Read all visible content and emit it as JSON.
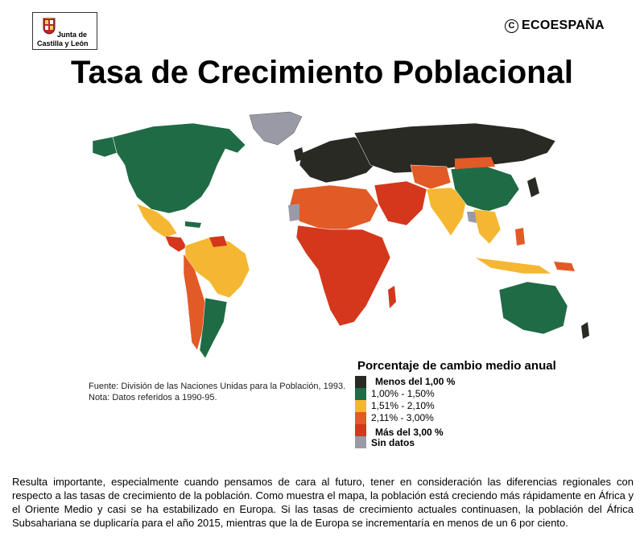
{
  "logo": {
    "line1": "Junta de",
    "line2": "Castilla y León"
  },
  "brand": {
    "symbol": "C",
    "name": "ECOESPAÑA"
  },
  "title": "Tasa de Crecimiento Poblacional",
  "source": {
    "line1": "Fuente: División de las Naciones Unidas para la Población, 1993.",
    "line2": "Nota: Datos referidos a 1990-95."
  },
  "legend": {
    "title": "Porcentaje de cambio medio anual",
    "items": [
      {
        "label": "Menos del 1,00 %",
        "color": "#2a2a24"
      },
      {
        "label": "1,00% - 1,50%",
        "color": "#1f6b45"
      },
      {
        "label": "1,51% - 2,10%",
        "color": "#f5b731"
      },
      {
        "label": "2,11% - 3,00%",
        "color": "#e25a25"
      },
      {
        "label": "Más del 3,00 %",
        "color": "#d4371c"
      },
      {
        "label": "Sin datos",
        "color": "#9a9aa6"
      }
    ]
  },
  "caption": "Resulta importante, especialmente cuando pensamos de cara al futuro, tener en consideración las diferencias regionales con respecto a las tasas de crecimiento de la población. Como muestra el mapa, la población está creciendo más rápidamente en África y el Oriente Medio y casi se ha estabilizado en Europa. Si las tasas de crecimiento actuales continuasen, la población del África Subsahariana se duplicaría para el año 2015, mientras que la de Europa se incrementaría en menos de un 6 por ciento."
}
